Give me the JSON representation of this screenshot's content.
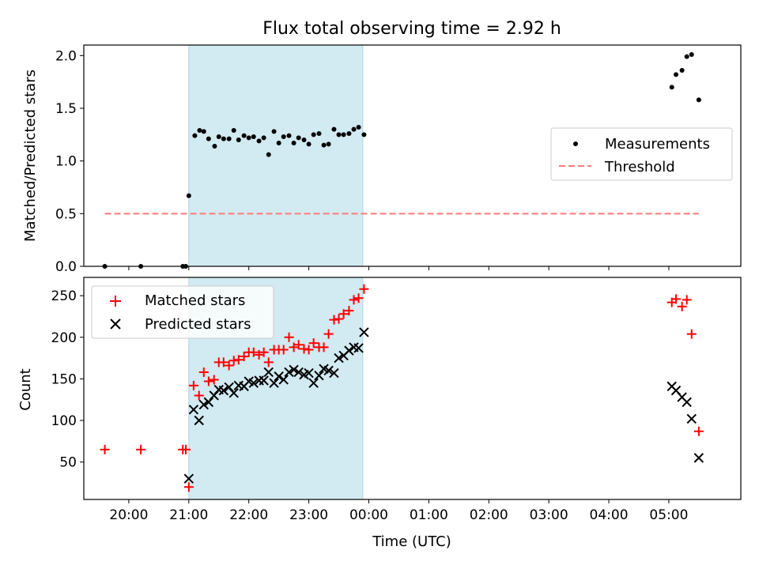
{
  "title": "Flux total observing time = 2.92 h",
  "colors": {
    "band": "#add8e6",
    "threshold": "#ff7b7b",
    "matched": "#ff0000",
    "predicted": "#000000",
    "measurement": "#000000"
  },
  "chart_data": [
    {
      "type": "scatter",
      "panel": "top",
      "ylabel": "Matched/Predicted stars",
      "ylim": [
        0,
        2.1
      ],
      "xlim": [
        19.25,
        30.2
      ],
      "ytick_values": [
        0,
        0.5,
        1.0,
        1.5,
        2.0
      ],
      "ytick_labels": [
        "0.0",
        "0.5",
        "1.0",
        "1.5",
        "2.0"
      ],
      "shaded_interval": [
        21.0,
        23.9
      ],
      "threshold": {
        "y": 0.5,
        "x": [
          19.6,
          29.5
        ]
      },
      "series": [
        {
          "name": "Measurements",
          "points": [
            [
              19.6,
              0.0
            ],
            [
              20.2,
              0.0
            ],
            [
              20.9,
              0.0
            ],
            [
              20.95,
              0.0
            ],
            [
              21.0,
              0.67
            ],
            [
              21.1,
              1.24
            ],
            [
              21.18,
              1.29
            ],
            [
              21.25,
              1.28
            ],
            [
              21.33,
              1.21
            ],
            [
              21.43,
              1.14
            ],
            [
              21.5,
              1.23
            ],
            [
              21.58,
              1.21
            ],
            [
              21.67,
              1.21
            ],
            [
              21.75,
              1.29
            ],
            [
              21.83,
              1.2
            ],
            [
              21.92,
              1.24
            ],
            [
              22.0,
              1.22
            ],
            [
              22.08,
              1.23
            ],
            [
              22.17,
              1.19
            ],
            [
              22.25,
              1.22
            ],
            [
              22.33,
              1.06
            ],
            [
              22.42,
              1.28
            ],
            [
              22.5,
              1.17
            ],
            [
              22.58,
              1.23
            ],
            [
              22.67,
              1.24
            ],
            [
              22.75,
              1.17
            ],
            [
              22.83,
              1.22
            ],
            [
              22.92,
              1.2
            ],
            [
              23.0,
              1.16
            ],
            [
              23.08,
              1.25
            ],
            [
              23.17,
              1.26
            ],
            [
              23.25,
              1.15
            ],
            [
              23.33,
              1.16
            ],
            [
              23.42,
              1.3
            ],
            [
              23.5,
              1.25
            ],
            [
              23.58,
              1.25
            ],
            [
              23.67,
              1.26
            ],
            [
              23.75,
              1.3
            ],
            [
              23.83,
              1.32
            ],
            [
              23.92,
              1.25
            ],
            [
              29.05,
              1.7
            ],
            [
              29.12,
              1.82
            ],
            [
              29.22,
              1.86
            ],
            [
              29.3,
              1.99
            ],
            [
              29.38,
              2.01
            ],
            [
              29.5,
              1.58
            ]
          ]
        }
      ],
      "legend": {
        "placement": "center-right",
        "entries": [
          "Measurements",
          "Threshold"
        ]
      }
    },
    {
      "type": "scatter",
      "panel": "bottom",
      "ylabel": "Count",
      "xlabel": "Time (UTC)",
      "ylim": [
        5,
        272
      ],
      "xlim": [
        19.25,
        30.2
      ],
      "ytick_values": [
        50,
        100,
        150,
        200,
        250
      ],
      "ytick_labels": [
        "50",
        "100",
        "150",
        "200",
        "250"
      ],
      "xtick_values": [
        20,
        21,
        22,
        23,
        24,
        25,
        26,
        27,
        28,
        29
      ],
      "xtick_labels": [
        "20:00",
        "21:00",
        "22:00",
        "23:00",
        "00:00",
        "01:00",
        "02:00",
        "03:00",
        "04:00",
        "05:00"
      ],
      "shaded_interval": [
        21.0,
        23.9
      ],
      "series": [
        {
          "name": "Matched stars",
          "points": [
            [
              19.6,
              65
            ],
            [
              20.2,
              65
            ],
            [
              20.9,
              65
            ],
            [
              20.95,
              65
            ],
            [
              21.0,
              20
            ],
            [
              21.08,
              142
            ],
            [
              21.17,
              130
            ],
            [
              21.25,
              158
            ],
            [
              21.33,
              147
            ],
            [
              21.42,
              149
            ],
            [
              21.5,
              170
            ],
            [
              21.58,
              170
            ],
            [
              21.67,
              166
            ],
            [
              21.75,
              172
            ],
            [
              21.83,
              173
            ],
            [
              21.92,
              177
            ],
            [
              22.0,
              182
            ],
            [
              22.08,
              182
            ],
            [
              22.17,
              179
            ],
            [
              22.25,
              182
            ],
            [
              22.33,
              170
            ],
            [
              22.42,
              185
            ],
            [
              22.5,
              185
            ],
            [
              22.58,
              185
            ],
            [
              22.67,
              200
            ],
            [
              22.75,
              188
            ],
            [
              22.83,
              191
            ],
            [
              22.92,
              186
            ],
            [
              23.0,
              185
            ],
            [
              23.08,
              193
            ],
            [
              23.17,
              188
            ],
            [
              23.25,
              188
            ],
            [
              23.33,
              204
            ],
            [
              23.42,
              221
            ],
            [
              23.5,
              222
            ],
            [
              23.58,
              228
            ],
            [
              23.67,
              232
            ],
            [
              23.75,
              245
            ],
            [
              23.83,
              247
            ],
            [
              23.92,
              258
            ],
            [
              29.05,
              242
            ],
            [
              29.12,
              246
            ],
            [
              29.22,
              237
            ],
            [
              29.3,
              245
            ],
            [
              29.38,
              204
            ],
            [
              29.5,
              87
            ]
          ]
        },
        {
          "name": "Predicted stars",
          "points": [
            [
              21.0,
              30
            ],
            [
              21.08,
              113
            ],
            [
              21.17,
              100
            ],
            [
              21.25,
              119
            ],
            [
              21.33,
              122
            ],
            [
              21.42,
              130
            ],
            [
              21.5,
              137
            ],
            [
              21.58,
              136
            ],
            [
              21.67,
              140
            ],
            [
              21.75,
              133
            ],
            [
              21.83,
              142
            ],
            [
              21.92,
              141
            ],
            [
              22.0,
              147
            ],
            [
              22.08,
              145
            ],
            [
              22.17,
              148
            ],
            [
              22.25,
              148
            ],
            [
              22.33,
              158
            ],
            [
              22.42,
              145
            ],
            [
              22.5,
              153
            ],
            [
              22.58,
              149
            ],
            [
              22.67,
              158
            ],
            [
              22.75,
              161
            ],
            [
              22.83,
              158
            ],
            [
              22.92,
              155
            ],
            [
              23.0,
              157
            ],
            [
              23.08,
              145
            ],
            [
              23.17,
              154
            ],
            [
              23.25,
              162
            ],
            [
              23.33,
              160
            ],
            [
              23.42,
              157
            ],
            [
              23.5,
              175
            ],
            [
              23.58,
              178
            ],
            [
              23.67,
              184
            ],
            [
              23.75,
              188
            ],
            [
              23.83,
              187
            ],
            [
              23.92,
              206
            ],
            [
              29.05,
              141
            ],
            [
              29.12,
              136
            ],
            [
              29.22,
              128
            ],
            [
              29.3,
              122
            ],
            [
              29.38,
              102
            ],
            [
              29.5,
              55
            ]
          ]
        }
      ],
      "legend": {
        "placement": "upper-left",
        "entries": [
          "Matched stars",
          "Predicted stars"
        ]
      }
    }
  ]
}
